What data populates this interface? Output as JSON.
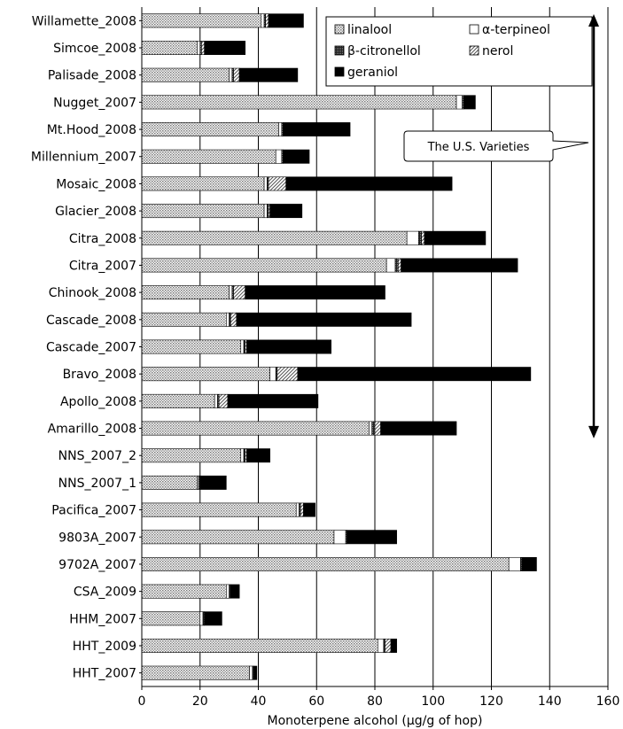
{
  "chart_data": {
    "type": "bar",
    "orientation": "horizontal",
    "stacked": true,
    "xlabel": "Monoterpene alcohol (μg/g of hop)",
    "xlim": [
      0,
      160
    ],
    "xticks": [
      0,
      20,
      40,
      60,
      80,
      100,
      120,
      140,
      160
    ],
    "grid": "vertical",
    "legend_position": "top-right",
    "categories": [
      "Willamette_2008",
      "Simcoe_2008",
      "Palisade_2008",
      "Nugget_2007",
      "Mt.Hood_2008",
      "Millennium_2007",
      "Mosaic_2008",
      "Glacier_2008",
      "Citra_2008",
      "Citra_2007",
      "Chinook_2008",
      "Cascade_2008",
      "Cascade_2007",
      "Bravo_2008",
      "Apollo_2008",
      "Amarillo_2008",
      "NNS_2007_2",
      "NNS_2007_1",
      "Pacifica_2007",
      "9803A_2007",
      "9702A_2007",
      "CSA_2009",
      "HHM_2007",
      "HHT_2009",
      "HHT_2007"
    ],
    "series": [
      {
        "name": "linalool",
        "color": "#d0d0d0",
        "pattern": "dots",
        "values": [
          41,
          19,
          30,
          108,
          47,
          46,
          42,
          42,
          91,
          84,
          30,
          29,
          34,
          44,
          25,
          78,
          34,
          19,
          53,
          66,
          126,
          29,
          20,
          81,
          37
        ]
      },
      {
        "name": "α-terpineol",
        "color": "#ffffff",
        "pattern": "none",
        "values": [
          1,
          1,
          1,
          2,
          1,
          2,
          1,
          1,
          4,
          3,
          1,
          1,
          1,
          2,
          1,
          1,
          1,
          0.5,
          1,
          4,
          4,
          1,
          1,
          2,
          1
        ]
      },
      {
        "name": "β-citronellol",
        "color": "#555555",
        "pattern": "dense",
        "values": [
          0.5,
          0.5,
          0.5,
          0.5,
          0.5,
          0.5,
          0.5,
          0.5,
          1,
          1,
          0.5,
          0.5,
          0.5,
          0.5,
          0.5,
          1,
          0.5,
          0.5,
          0.5,
          0.5,
          0.5,
          0.5,
          0.5,
          0.5,
          0.5
        ]
      },
      {
        "name": "nerol",
        "color": "#c8c8c8",
        "pattern": "diagonal",
        "values": [
          1,
          1,
          2,
          0,
          0,
          0,
          6,
          0.5,
          1,
          1,
          4,
          2,
          0.5,
          7,
          3,
          2,
          0.5,
          0,
          1,
          0,
          0,
          0,
          0,
          2,
          0
        ]
      },
      {
        "name": "geraniol",
        "color": "#000000",
        "pattern": "none",
        "values": [
          12,
          14,
          20,
          4,
          23,
          9,
          57,
          11,
          21,
          40,
          48,
          60,
          29,
          80,
          31,
          26,
          8,
          9,
          4,
          17,
          5,
          3,
          6,
          2,
          1
        ]
      }
    ],
    "annotations": [
      {
        "text": "The U.S. Varieties",
        "span_from": "Willamette_2008",
        "span_to": "Amarillo_2008"
      }
    ]
  }
}
